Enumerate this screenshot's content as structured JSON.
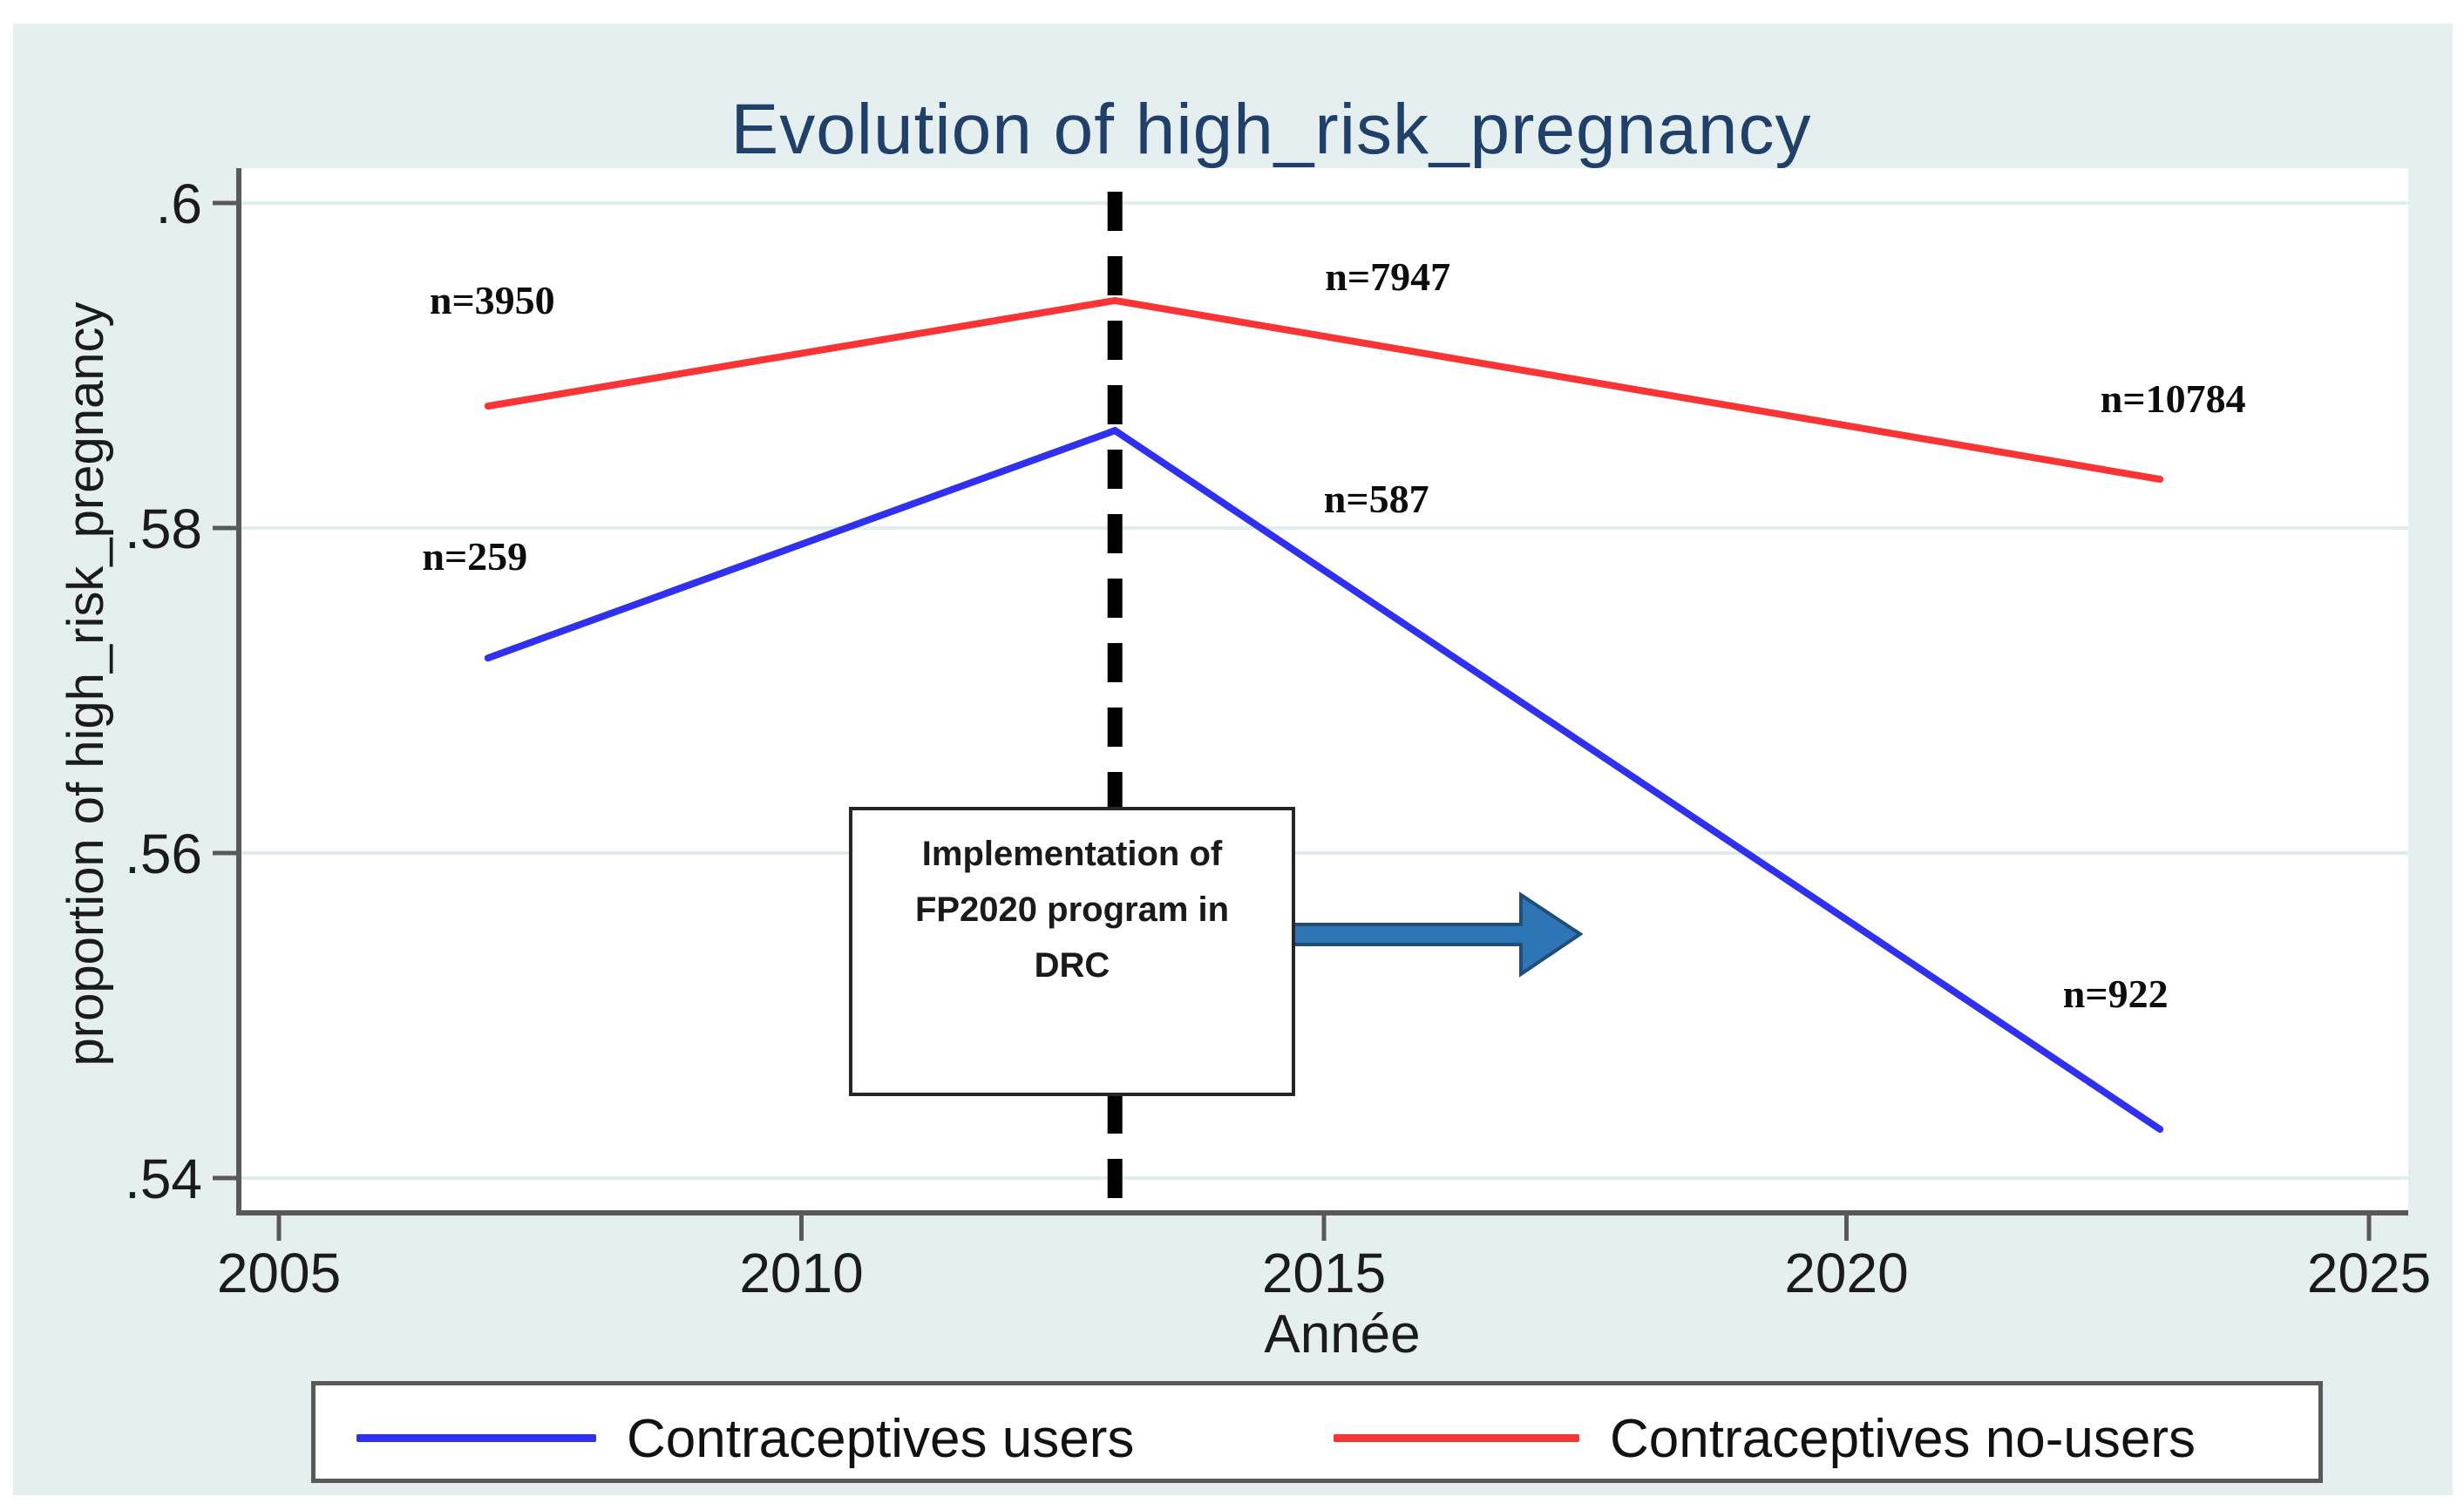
{
  "title": "Evolution of high_risk_pregnancy",
  "chart_data": {
    "type": "line",
    "x": [
      2007,
      2013,
      2023
    ],
    "xlabel": "Année",
    "ylabel": "proportion of high_risk_pregnancy",
    "xlim": [
      2004.6,
      2025.4
    ],
    "ylim": [
      0.538,
      0.602
    ],
    "grid": "horizontal-light",
    "legend_position": "bottom",
    "x_ticks": [
      {
        "label": "2005",
        "value": 2005
      },
      {
        "label": "2010",
        "value": 2010
      },
      {
        "label": "2015",
        "value": 2015
      },
      {
        "label": "2020",
        "value": 2020
      },
      {
        "label": "2025",
        "value": 2025
      }
    ],
    "y_ticks": [
      {
        "label": ".6",
        "value": 0.6
      },
      {
        "label": ".58",
        "value": 0.58
      },
      {
        "label": ".56",
        "value": 0.56
      },
      {
        "label": ".54",
        "value": 0.54
      }
    ],
    "series": [
      {
        "name": "Contraceptives users",
        "color": "#3030f0",
        "values": [
          0.572,
          0.586,
          0.543
        ],
        "point_labels": [
          "n=259",
          "n=587",
          "n=922"
        ]
      },
      {
        "name": "Contraceptives no-users",
        "color": "#f93434",
        "values": [
          0.5875,
          0.594,
          0.583
        ],
        "point_labels": [
          "n=3950",
          "n=7947",
          "n=10784"
        ]
      }
    ],
    "annotation": {
      "text": "Implementation of FP2020 program in DRC",
      "event_year": 2013,
      "event_line_style": "dashed-black",
      "arrow_color": "#2e75b6"
    }
  },
  "colors": {
    "figure_background": "#e6eff0",
    "plot_background": "#ffffff",
    "gridline": "#e0edef",
    "axis": "#59595b",
    "title": "#20406a",
    "event_line": "#000000",
    "arrow_fill": "#2e75b6",
    "arrow_stroke": "#1f4e79"
  }
}
